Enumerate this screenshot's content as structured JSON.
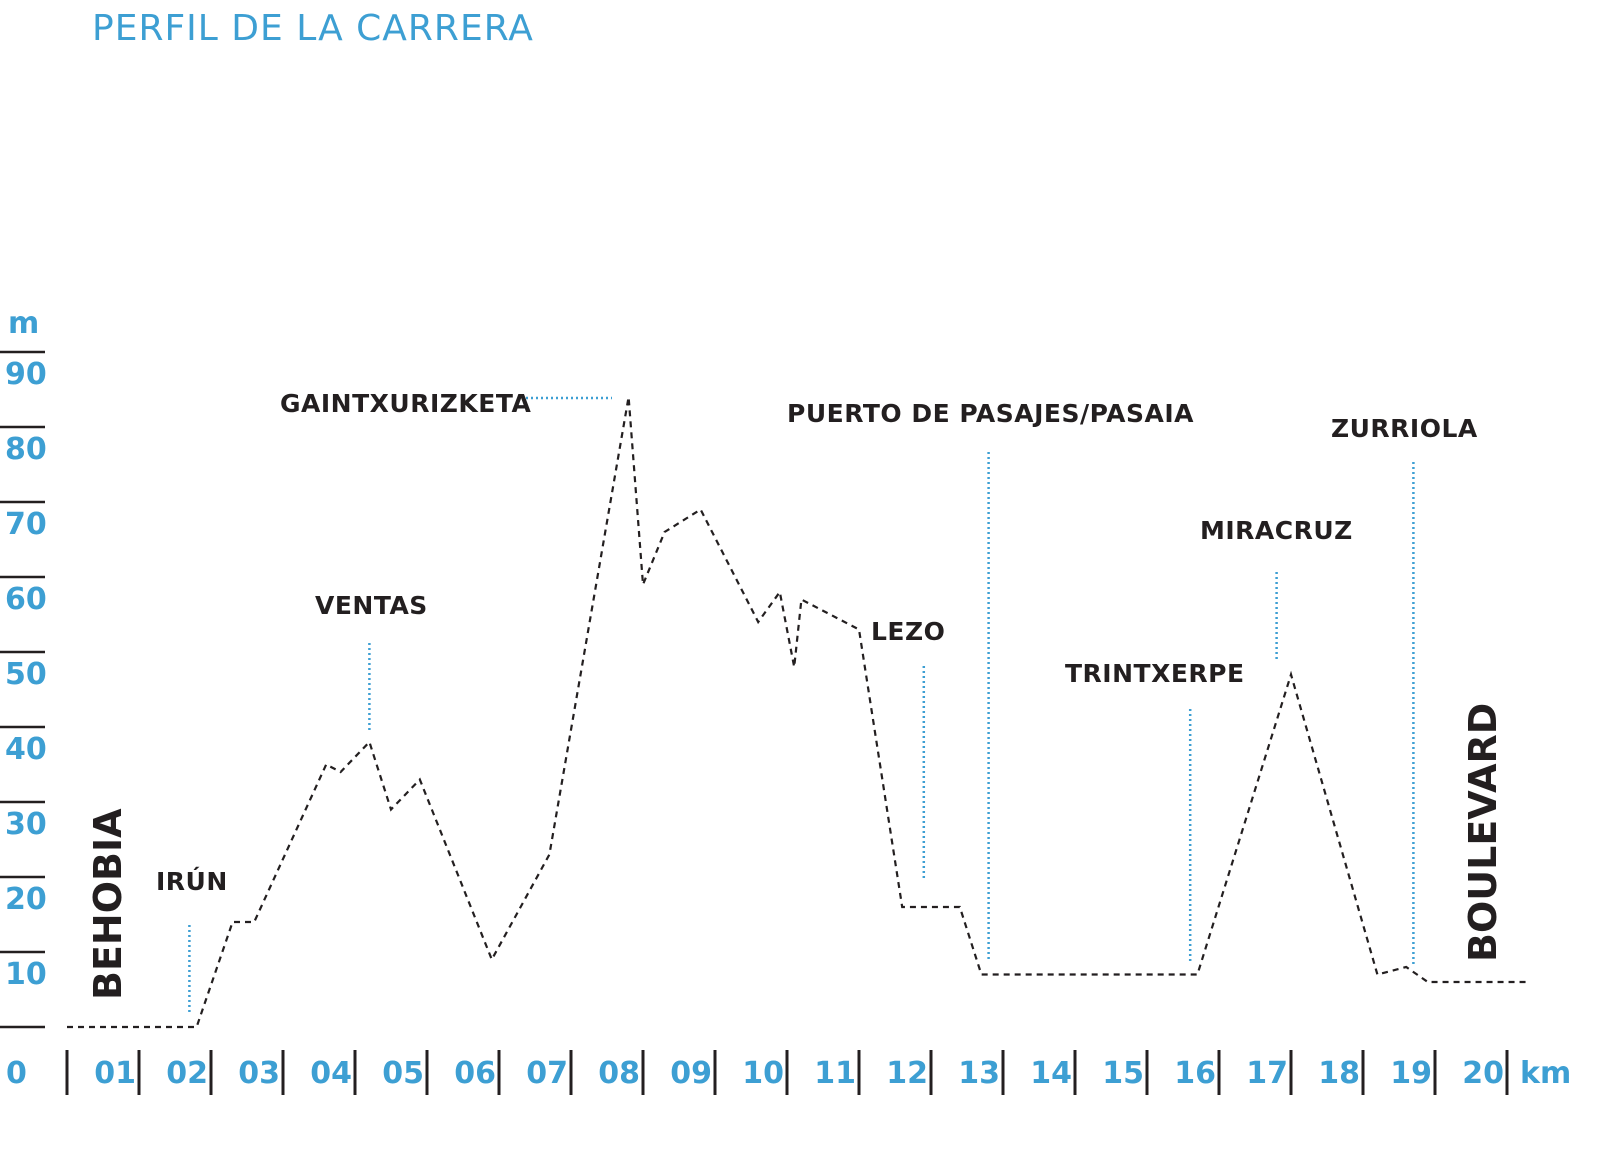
{
  "colors": {
    "accent": "#3d9fd3",
    "ink": "#231f20"
  },
  "title": "PERFIL DE LA CARRERA",
  "chart_data": {
    "type": "line",
    "title": "PERFIL DE LA CARRERA",
    "xlabel": "km",
    "ylabel": "m",
    "xlim": [
      0,
      20.3
    ],
    "ylim": [
      0,
      90
    ],
    "grid": false,
    "x_ticks": [
      "0",
      "01",
      "02",
      "03",
      "04",
      "05",
      "06",
      "07",
      "08",
      "09",
      "10",
      "11",
      "12",
      "13",
      "14",
      "15",
      "16",
      "17",
      "18",
      "19",
      "20"
    ],
    "y_ticks": [
      "10",
      "20",
      "30",
      "40",
      "50",
      "60",
      "70",
      "80",
      "90"
    ],
    "series": [
      {
        "line_style": "dashed",
        "x": [
          0,
          1.8,
          2.3,
          2.6,
          3.6,
          3.8,
          4.2,
          4.5,
          4.9,
          5.9,
          6.7,
          7.8,
          8.0,
          8.3,
          8.8,
          9.6,
          9.9,
          10.1,
          10.2,
          11.0,
          11.6,
          12.4,
          12.7,
          15.7,
          17.0,
          18.2,
          18.6,
          18.9,
          20.3
        ],
        "y": [
          0,
          0,
          14,
          14,
          35,
          34,
          38,
          29,
          33,
          9,
          23,
          84,
          59,
          66,
          69,
          54,
          58,
          48,
          57,
          53,
          16,
          16,
          7,
          7,
          47,
          7,
          8,
          6,
          6
        ]
      }
    ],
    "annotations": [
      {
        "label": "BEHOBIA",
        "x": 0,
        "y": 0
      },
      {
        "label": "IRÚN",
        "x": 1.7,
        "y": 1
      },
      {
        "label": "VENTAS",
        "x": 4.2,
        "y": 40
      },
      {
        "label": "GAINTXURIZKETA",
        "x": 8.0,
        "y": 84
      },
      {
        "label": "LEZO",
        "x": 11.9,
        "y": 19
      },
      {
        "label": "PUERTO DE PASAJES/PASAIA",
        "x": 12.8,
        "y": 9
      },
      {
        "label": "TRINTXERPE",
        "x": 15.6,
        "y": 9
      },
      {
        "label": "MIRACRUZ",
        "x": 16.8,
        "y": 49
      },
      {
        "label": "ZURRIOLA",
        "x": 18.7,
        "y": 8
      },
      {
        "label": "BOULEVARD",
        "x": 20.0,
        "y": 6
      }
    ]
  }
}
